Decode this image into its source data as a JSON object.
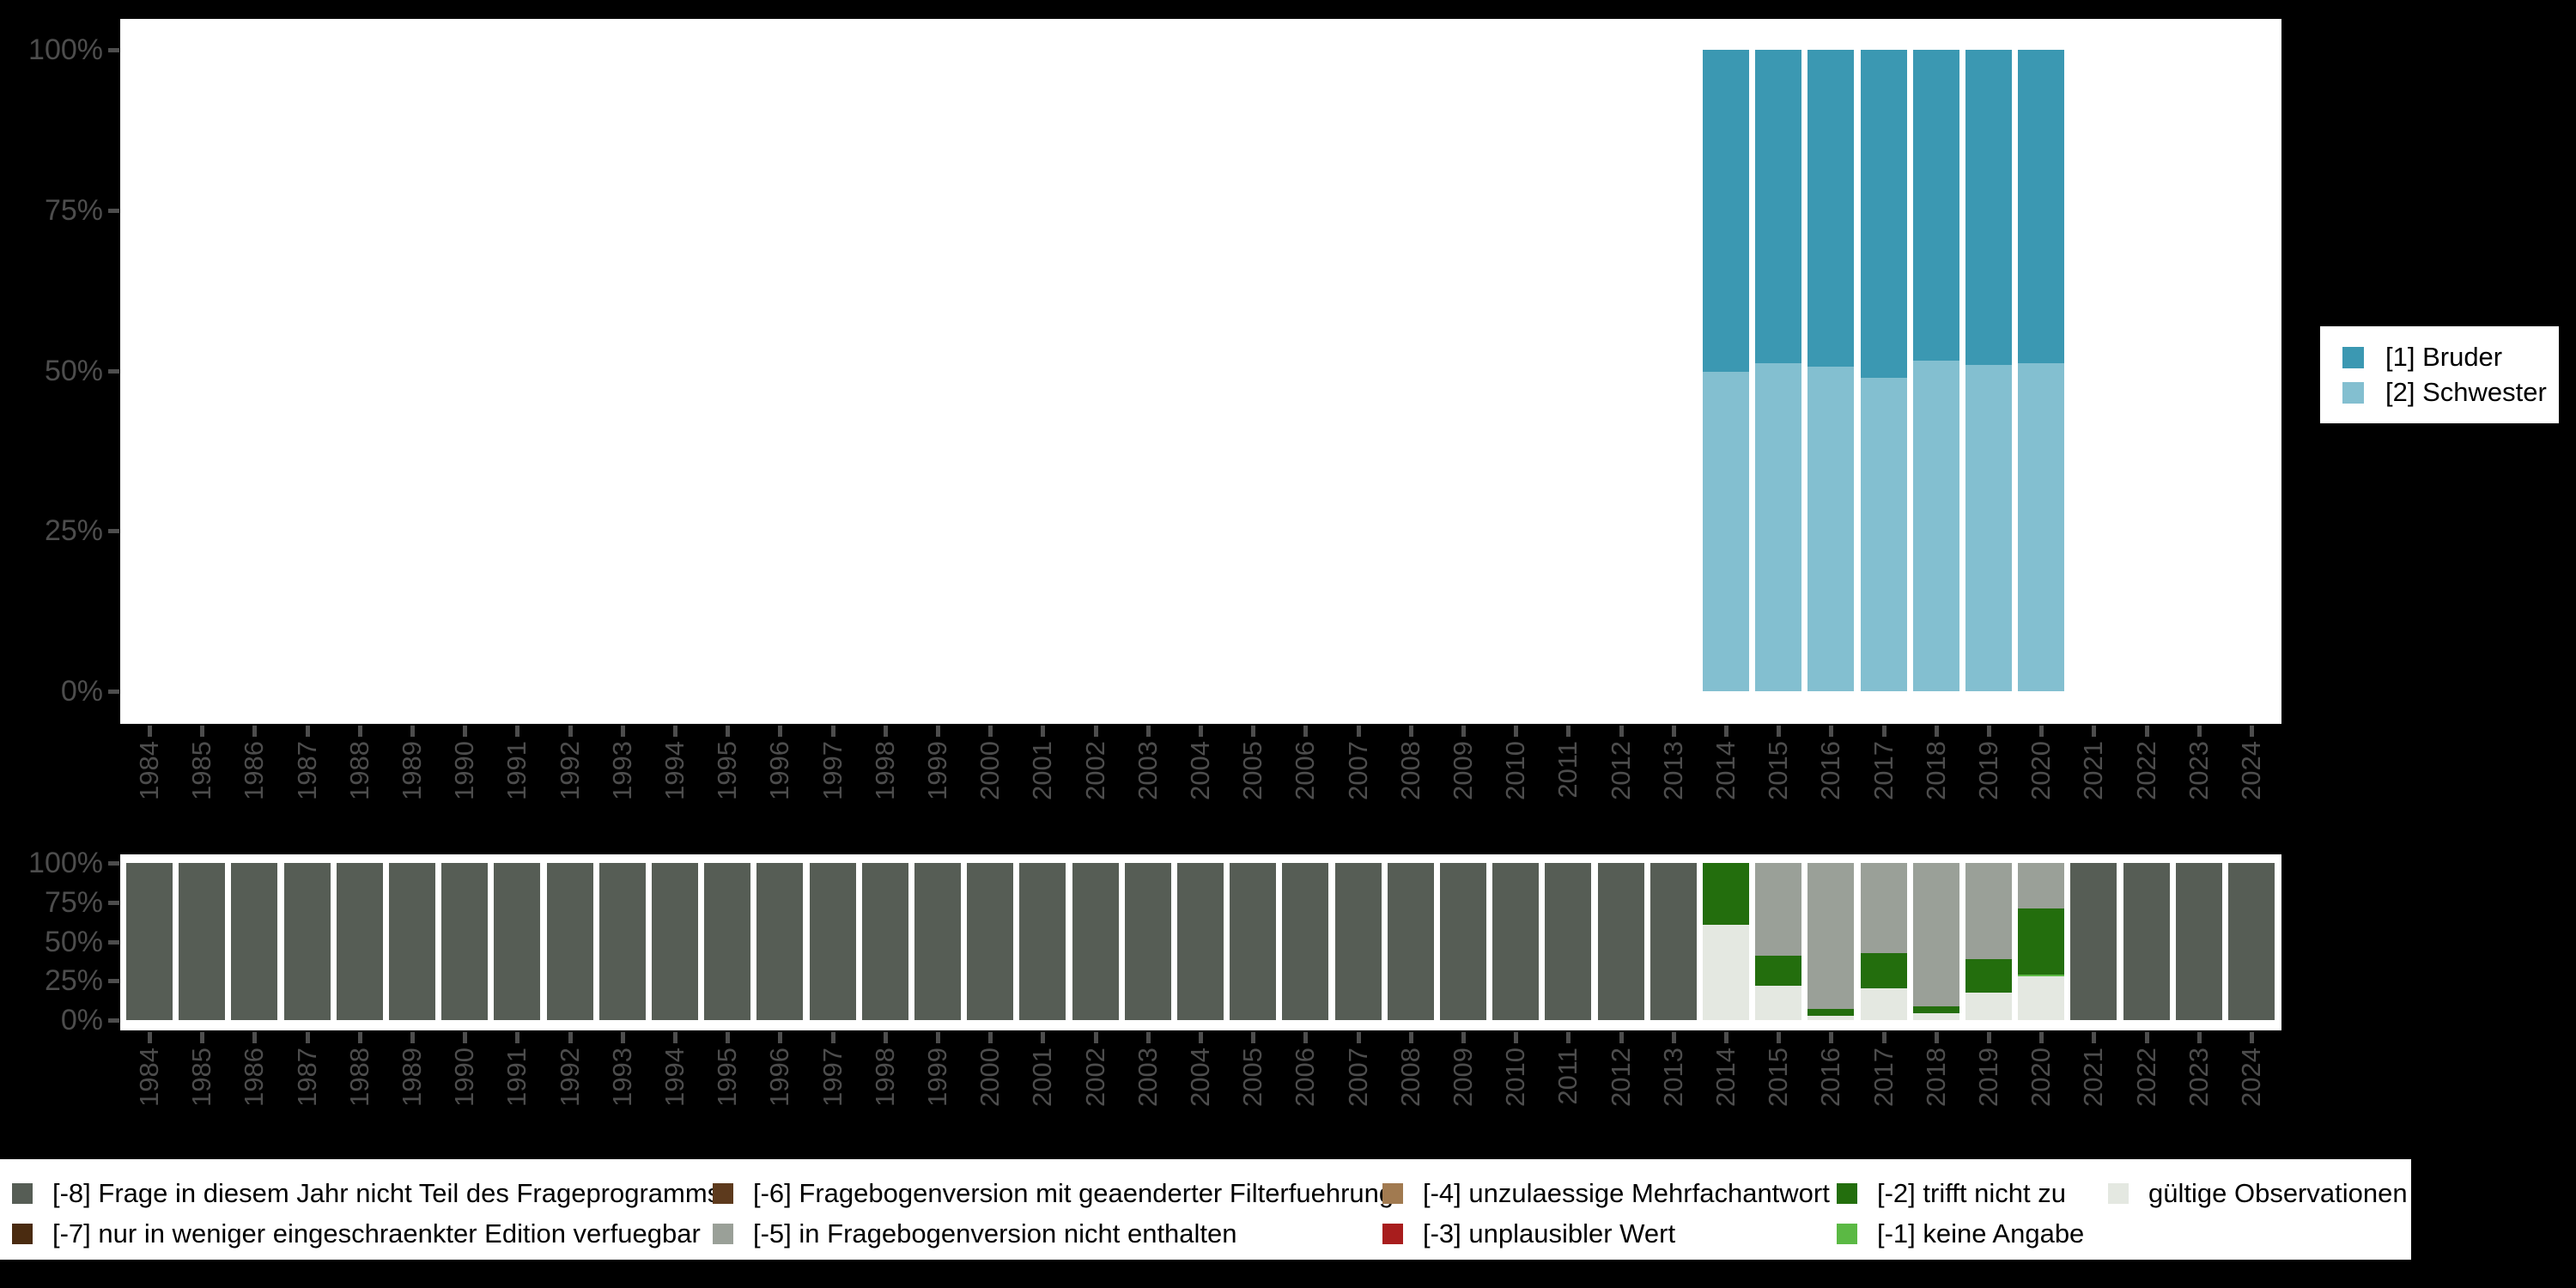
{
  "background_color": "#000000",
  "axis": {
    "text_color": "#4d4d4d",
    "y_tick_labels": [
      "100%",
      "75%",
      "50%",
      "25%",
      "0%"
    ],
    "years": [
      "1984",
      "1985",
      "1986",
      "1987",
      "1988",
      "1989",
      "1990",
      "1991",
      "1992",
      "1993",
      "1994",
      "1995",
      "1996",
      "1997",
      "1998",
      "1999",
      "2000",
      "2001",
      "2002",
      "2003",
      "2004",
      "2005",
      "2006",
      "2007",
      "2008",
      "2009",
      "2010",
      "2011",
      "2012",
      "2013",
      "2014",
      "2015",
      "2016",
      "2017",
      "2018",
      "2019",
      "2020",
      "2021",
      "2022",
      "2023",
      "2024"
    ]
  },
  "chart_data": [
    {
      "type": "bar",
      "subtype": "stacked-percent",
      "title": "",
      "xlabel": "",
      "ylabel": "",
      "ylim": [
        0,
        100
      ],
      "grid": false,
      "legend_position": "right",
      "categories": [
        "1984",
        "1985",
        "1986",
        "1987",
        "1988",
        "1989",
        "1990",
        "1991",
        "1992",
        "1993",
        "1994",
        "1995",
        "1996",
        "1997",
        "1998",
        "1999",
        "2000",
        "2001",
        "2002",
        "2003",
        "2004",
        "2005",
        "2006",
        "2007",
        "2008",
        "2009",
        "2010",
        "2011",
        "2012",
        "2013",
        "2014",
        "2015",
        "2016",
        "2017",
        "2018",
        "2019",
        "2020",
        "2021",
        "2022",
        "2023",
        "2024"
      ],
      "series": [
        {
          "name": "[1] Bruder",
          "color": "#3b98b2",
          "values": {
            "2014": 50.2,
            "2015": 48.9,
            "2016": 49.4,
            "2017": 51.1,
            "2018": 48.5,
            "2019": 49.1,
            "2020": 48.9
          }
        },
        {
          "name": "[2] Schwester",
          "color": "#83bfd0",
          "values": {
            "2014": 49.8,
            "2015": 51.1,
            "2016": 50.6,
            "2017": 48.9,
            "2018": 51.5,
            "2019": 50.9,
            "2020": 51.1
          }
        }
      ]
    },
    {
      "type": "bar",
      "subtype": "stacked-percent",
      "title": "",
      "xlabel": "",
      "ylabel": "",
      "ylim": [
        0,
        100
      ],
      "grid": false,
      "legend_position": "bottom",
      "categories": [
        "1984",
        "1985",
        "1986",
        "1987",
        "1988",
        "1989",
        "1990",
        "1991",
        "1992",
        "1993",
        "1994",
        "1995",
        "1996",
        "1997",
        "1998",
        "1999",
        "2000",
        "2001",
        "2002",
        "2003",
        "2004",
        "2005",
        "2006",
        "2007",
        "2008",
        "2009",
        "2010",
        "2011",
        "2012",
        "2013",
        "2014",
        "2015",
        "2016",
        "2017",
        "2018",
        "2019",
        "2020",
        "2021",
        "2022",
        "2023",
        "2024"
      ],
      "series": [
        {
          "name": "[-8] Frage in diesem Jahr nicht Teil des Frageprogramms",
          "color": "#565d55",
          "values": {
            "1984": 100,
            "1985": 100,
            "1986": 100,
            "1987": 100,
            "1988": 100,
            "1989": 100,
            "1990": 100,
            "1991": 100,
            "1992": 100,
            "1993": 100,
            "1994": 100,
            "1995": 100,
            "1996": 100,
            "1997": 100,
            "1998": 100,
            "1999": 100,
            "2000": 100,
            "2001": 100,
            "2002": 100,
            "2003": 100,
            "2004": 100,
            "2005": 100,
            "2006": 100,
            "2007": 100,
            "2008": 100,
            "2009": 100,
            "2010": 100,
            "2011": 100,
            "2012": 100,
            "2013": 100,
            "2021": 100,
            "2022": 100,
            "2023": 100,
            "2024": 100
          }
        },
        {
          "name": "[-5] in Fragebogenversion nicht enthalten",
          "color": "#9aa098",
          "values": {
            "2015": 59,
            "2016": 93,
            "2017": 57.5,
            "2018": 91,
            "2019": 61,
            "2020": 29
          }
        },
        {
          "name": "[-2] trifft nicht zu",
          "color": "#236e0d",
          "values": {
            "2014": 39.5,
            "2015": 19,
            "2016": 4,
            "2017": 22.5,
            "2018": 4.5,
            "2019": 21.5,
            "2020": 42
          }
        },
        {
          "name": "[-1] keine Angabe",
          "color": "#5bb944",
          "values": {
            "2020": 1
          }
        },
        {
          "name": "gültige Observationen",
          "color": "#e4e8e1",
          "values": {
            "2014": 60.5,
            "2015": 22,
            "2016": 3,
            "2017": 20,
            "2018": 4.5,
            "2019": 17.5,
            "2020": 28
          }
        }
      ]
    }
  ],
  "bottom_legend": {
    "items": [
      {
        "label": "[-8] Frage in diesem Jahr nicht Teil des Frageprogramms",
        "color": "#565d55",
        "col": 0,
        "row": 0
      },
      {
        "label": "[-7] nur in weniger eingeschraenkter Edition verfuegbar",
        "color": "#4a2b10",
        "col": 0,
        "row": 1
      },
      {
        "label": "[-6] Fragebogenversion mit geaenderter Filterfuehrung",
        "color": "#5d3a1d",
        "col": 1,
        "row": 0
      },
      {
        "label": "[-5] in Fragebogenversion nicht enthalten",
        "color": "#9aa098",
        "col": 1,
        "row": 1
      },
      {
        "label": "[-4] unzulaessige Mehrfachantwort",
        "color": "#a17a50",
        "col": 2,
        "row": 0
      },
      {
        "label": "[-3] unplausibler Wert",
        "color": "#a81d1d",
        "col": 2,
        "row": 1
      },
      {
        "label": "[-2] trifft nicht zu",
        "color": "#236e0d",
        "col": 3,
        "row": 0
      },
      {
        "label": "[-1] keine Angabe",
        "color": "#5bb944",
        "col": 3,
        "row": 1
      },
      {
        "label": "gültige Observationen",
        "color": "#e4e8e1",
        "col": 4,
        "row": 0
      }
    ]
  }
}
